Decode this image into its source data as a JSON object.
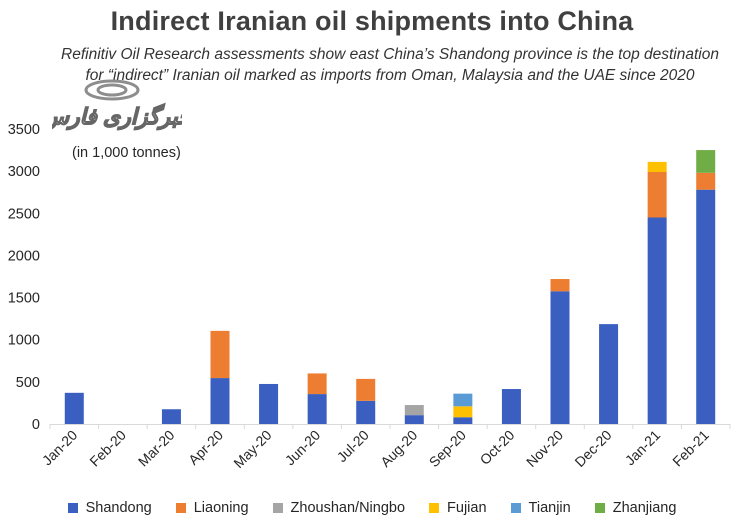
{
  "chart_data": {
    "type": "bar",
    "stacked": true,
    "title": "Indirect Iranian oil shipments into China",
    "subtitle": "Refinitiv Oil Research assessments show east China’s Shandong province is the top destination for “indirect” Iranian oil marked as imports from Oman, Malaysia and the UAE since 2020",
    "units_note": "(in 1,000 tonnes)",
    "watermark_text": "خبرگزاری فارس",
    "categories": [
      "Jan-20",
      "Feb-20",
      "Mar-20",
      "Apr-20",
      "May-20",
      "Jun-20",
      "Jul-20",
      "Aug-20",
      "Sep-20",
      "Oct-20",
      "Nov-20",
      "Dec-20",
      "Jan-21",
      "Feb-21"
    ],
    "ylim": [
      0,
      3500
    ],
    "yticks": [
      0,
      500,
      1000,
      1500,
      2000,
      2500,
      3000,
      3500
    ],
    "ytick_labels": [
      "0",
      "500",
      "1000",
      "1500",
      "2000",
      "2500",
      "3000",
      "3500"
    ],
    "grid": false,
    "legend_position": "bottom",
    "series": [
      {
        "name": "Shandong",
        "color": "#3a5fc0",
        "values": [
          370,
          0,
          175,
          545,
          475,
          355,
          275,
          105,
          80,
          415,
          1575,
          1185,
          2450,
          2780
        ]
      },
      {
        "name": "Liaoning",
        "color": "#ed7d31",
        "values": [
          0,
          0,
          0,
          560,
          0,
          245,
          260,
          0,
          0,
          0,
          145,
          0,
          540,
          200
        ]
      },
      {
        "name": "Zhoushan/Ningbo",
        "color": "#a5a5a5",
        "values": [
          0,
          0,
          0,
          0,
          0,
          0,
          0,
          120,
          0,
          0,
          0,
          0,
          0,
          0
        ]
      },
      {
        "name": "Fujian",
        "color": "#ffc000",
        "values": [
          0,
          0,
          0,
          0,
          0,
          0,
          0,
          0,
          130,
          0,
          0,
          0,
          120,
          0
        ]
      },
      {
        "name": "Tianjin",
        "color": "#5b9bd5",
        "values": [
          0,
          0,
          0,
          0,
          0,
          0,
          0,
          0,
          150,
          0,
          0,
          0,
          0,
          0
        ]
      },
      {
        "name": "Zhanjiang",
        "color": "#70ad47",
        "values": [
          0,
          0,
          0,
          0,
          0,
          0,
          0,
          0,
          0,
          0,
          0,
          0,
          0,
          270
        ]
      }
    ]
  }
}
